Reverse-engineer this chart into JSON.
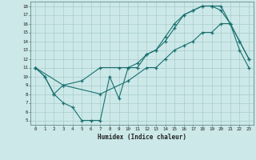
{
  "xlabel": "Humidex (Indice chaleur)",
  "bg_color": "#cce8e8",
  "grid_color": "#aacccc",
  "line_color": "#1a7070",
  "xlim": [
    -0.5,
    23.5
  ],
  "ylim": [
    4.5,
    18.5
  ],
  "xticks": [
    0,
    1,
    2,
    3,
    4,
    5,
    6,
    7,
    8,
    9,
    10,
    11,
    12,
    13,
    14,
    15,
    16,
    17,
    18,
    19,
    20,
    21,
    22,
    23
  ],
  "yticks": [
    5,
    6,
    7,
    8,
    9,
    10,
    11,
    12,
    13,
    14,
    15,
    16,
    17,
    18
  ],
  "line1_x": [
    0,
    1,
    2,
    3,
    4,
    5,
    6,
    7,
    8,
    9,
    10,
    11,
    12,
    13,
    14,
    15,
    16,
    17,
    18,
    19,
    20,
    21,
    22,
    23
  ],
  "line1_y": [
    11,
    10,
    8,
    7,
    6.5,
    5,
    5,
    5,
    10,
    7.5,
    11,
    11,
    12.5,
    13,
    14,
    15.5,
    17,
    17.5,
    18,
    18,
    18,
    16,
    14,
    12
  ],
  "line2_x": [
    0,
    1,
    2,
    3,
    5,
    7,
    9,
    10,
    11,
    12,
    13,
    14,
    15,
    16,
    17,
    18,
    19,
    20,
    21,
    22,
    23
  ],
  "line2_y": [
    11,
    10,
    8,
    9,
    9.5,
    11,
    11,
    11,
    11.5,
    12.5,
    13,
    14.5,
    16,
    17,
    17.5,
    18,
    18,
    17.5,
    16,
    14,
    12
  ],
  "line3_x": [
    0,
    3,
    7,
    10,
    12,
    13,
    14,
    15,
    16,
    17,
    18,
    19,
    20,
    21,
    22,
    23
  ],
  "line3_y": [
    11,
    9,
    8,
    9.5,
    11,
    11,
    12,
    13,
    13.5,
    14,
    15,
    15,
    16,
    16,
    13,
    11
  ]
}
